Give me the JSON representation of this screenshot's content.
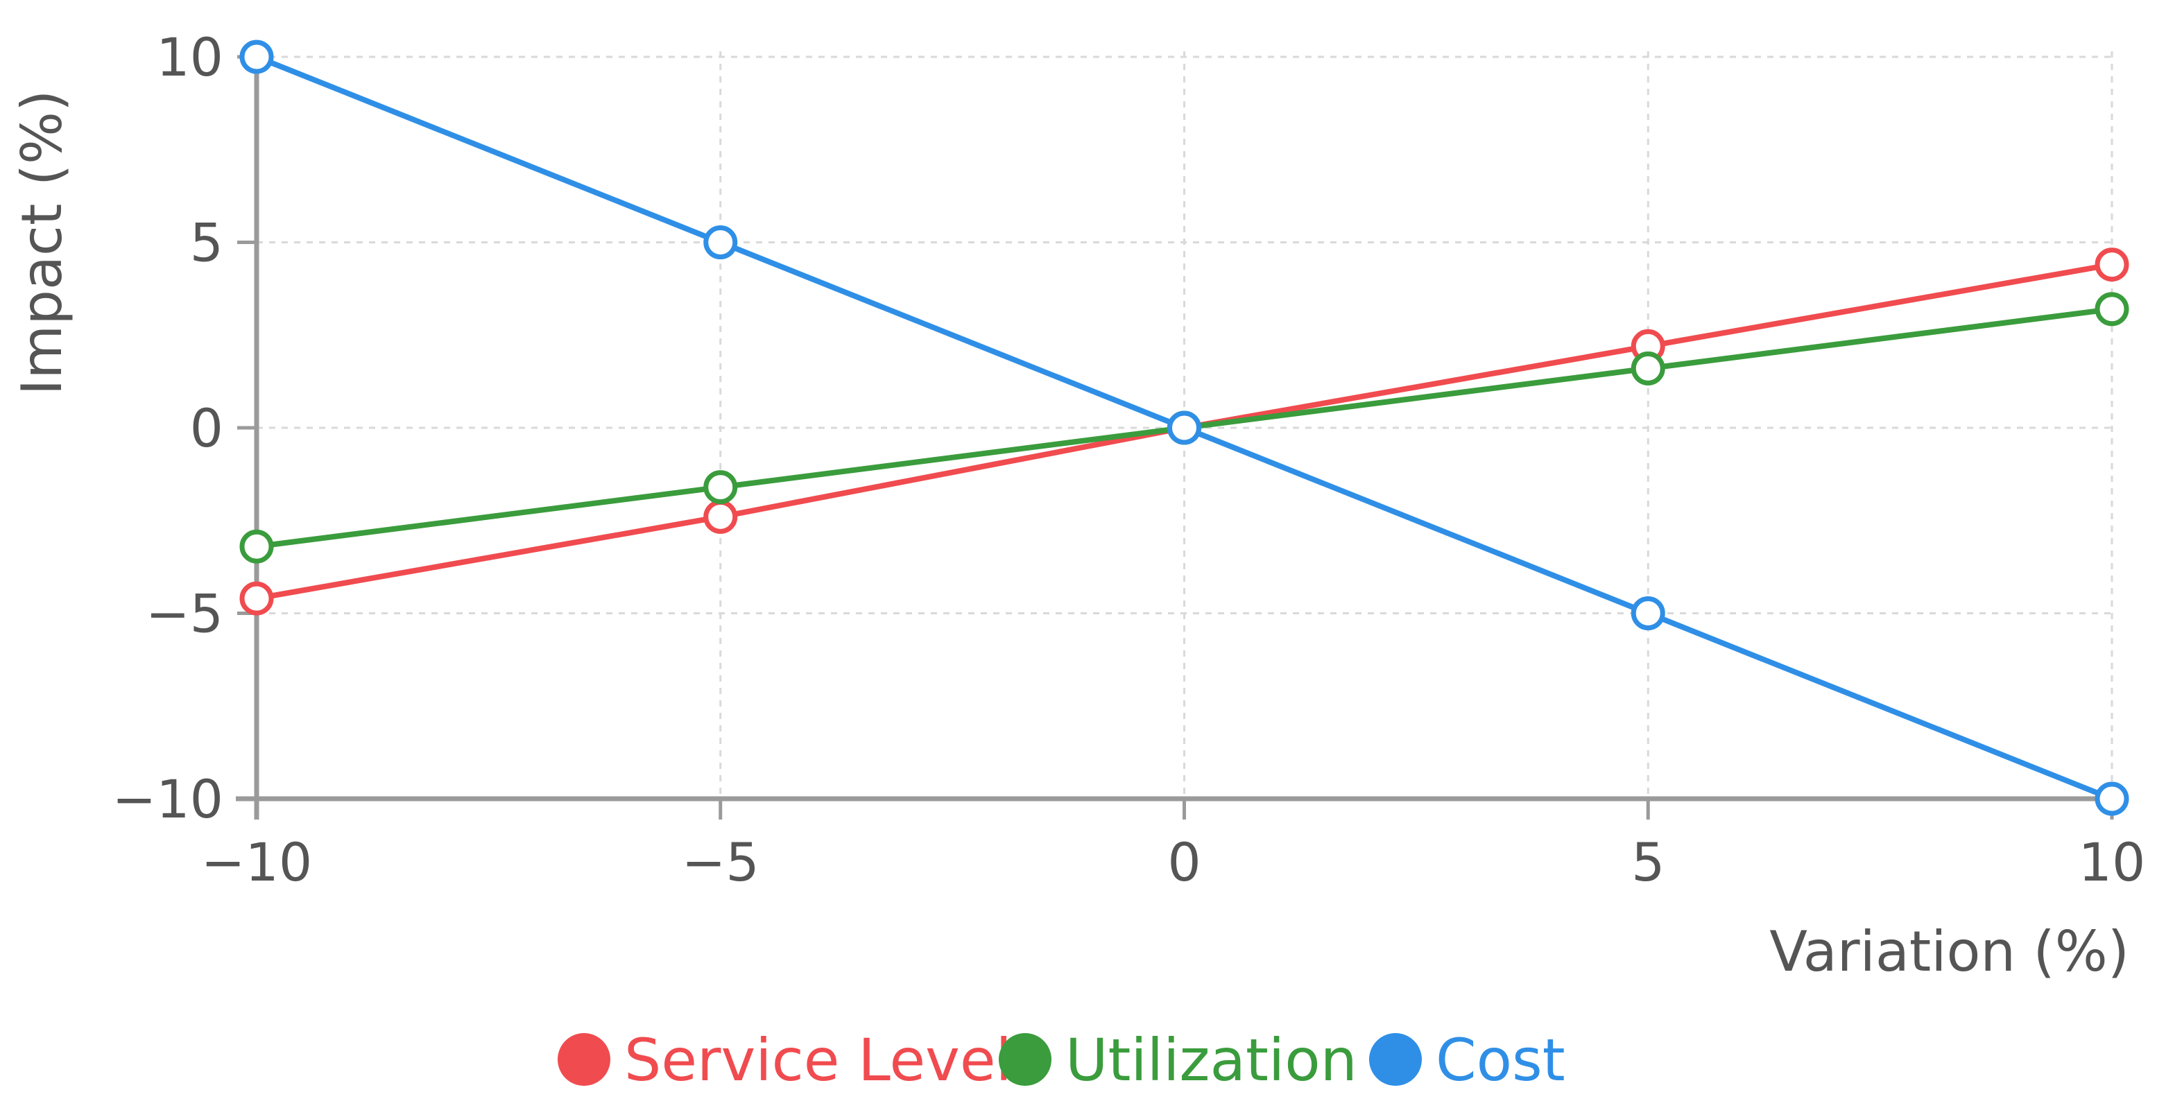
{
  "chart_data": {
    "type": "line",
    "title": "",
    "xlabel": "Variation (%)",
    "ylabel": "Impact (%)",
    "xlim": [
      -10,
      10
    ],
    "ylim": [
      -10,
      10
    ],
    "x_ticks": [
      "−10",
      "−5",
      "0",
      "5",
      "10"
    ],
    "y_ticks": [
      "10",
      "5",
      "0",
      "−5",
      "−10"
    ],
    "x": [
      -10,
      -5,
      0,
      5,
      10
    ],
    "grid": true,
    "legend_position": "bottom-center",
    "series": [
      {
        "name": "Service Level",
        "color": "#f04b4f",
        "values": [
          -4.6,
          -2.4,
          0,
          2.2,
          4.4
        ]
      },
      {
        "name": "Utilization",
        "color": "#3a9c3c",
        "values": [
          -3.2,
          -1.6,
          0,
          1.6,
          3.2
        ]
      },
      {
        "name": "Cost",
        "color": "#2f8fe6",
        "values": [
          10,
          5,
          0,
          -5,
          -10
        ]
      }
    ]
  }
}
